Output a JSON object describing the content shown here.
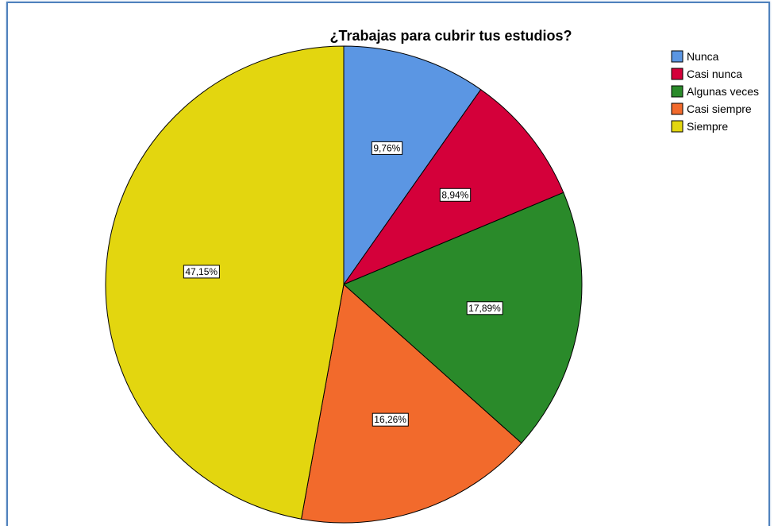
{
  "chart_data": {
    "type": "pie",
    "title": "¿Trabajas para cubrir tus estudios?",
    "legend_position": "top-right",
    "slices": [
      {
        "label": "Nunca",
        "value": 9.76,
        "value_label": "9,76%",
        "color": "#5b96e3"
      },
      {
        "label": "Casi nunca",
        "value": 8.94,
        "value_label": "8,94%",
        "color": "#d4003a"
      },
      {
        "label": "Algunas veces",
        "value": 17.89,
        "value_label": "17,89%",
        "color": "#2a8a2a"
      },
      {
        "label": "Casi siempre",
        "value": 16.26,
        "value_label": "16,26%",
        "color": "#f26a2c"
      },
      {
        "label": "Siempre",
        "value": 47.15,
        "value_label": "47,15%",
        "color": "#e3d60f"
      }
    ]
  }
}
